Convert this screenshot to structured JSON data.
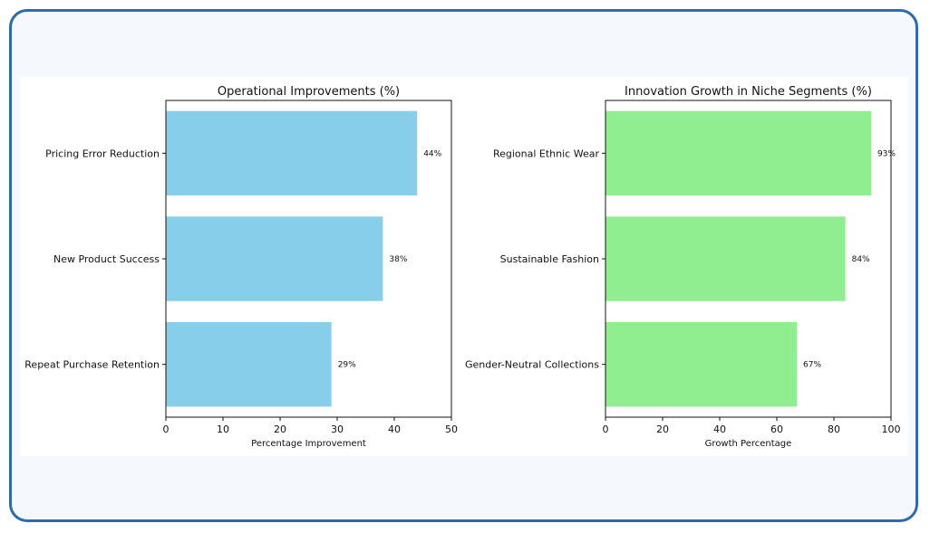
{
  "chart_data": [
    {
      "type": "bar",
      "orientation": "horizontal",
      "title": "Operational Improvements (%)",
      "categories": [
        "Pricing Error Reduction",
        "New Product Success",
        "Repeat Purchase Retention"
      ],
      "values": [
        44,
        38,
        29
      ],
      "data_labels": [
        "44%",
        "38%",
        "29%"
      ],
      "xlabel": "Percentage Improvement",
      "ylabel": "",
      "xlim": [
        0,
        50
      ],
      "xticks": [
        "0",
        "10",
        "20",
        "30",
        "40",
        "50"
      ],
      "color": "#87ceeb",
      "grid": false
    },
    {
      "type": "bar",
      "orientation": "horizontal",
      "title": "Innovation Growth in Niche Segments (%)",
      "categories": [
        "Regional Ethnic Wear",
        "Sustainable Fashion",
        "Gender-Neutral Collections"
      ],
      "values": [
        93,
        84,
        67
      ],
      "data_labels": [
        "93%",
        "84%",
        "67%"
      ],
      "xlabel": "Growth Percentage",
      "ylabel": "",
      "xlim": [
        0,
        100
      ],
      "xticks": [
        "0",
        "20",
        "40",
        "60",
        "80",
        "100"
      ],
      "color": "#90ee90",
      "grid": false
    }
  ]
}
